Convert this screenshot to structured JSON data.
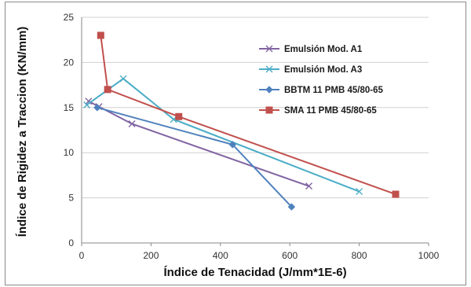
{
  "chart_data": {
    "type": "line",
    "xlabel": "Índice de Tenacidad (J/mm*1E-6)",
    "ylabel": "Índice de Rigidez a Traccion (KN/mm)",
    "xlim": [
      0,
      1000
    ],
    "ylim": [
      0,
      25
    ],
    "xticks": [
      0,
      200,
      400,
      600,
      800,
      1000
    ],
    "yticks": [
      0,
      5,
      10,
      15,
      20,
      25
    ],
    "grid": "horizontal",
    "legend_position": "right",
    "series": [
      {
        "name": "Emulsión Mod. A1",
        "color": "#8064A2",
        "marker": "x",
        "points": [
          [
            20,
            15.7
          ],
          [
            50,
            15.1
          ],
          [
            145,
            13.2
          ],
          [
            655,
            6.3
          ]
        ]
      },
      {
        "name": "Emulsión Mod. A3",
        "color": "#4BACC6",
        "marker": "x",
        "points": [
          [
            15,
            15.3
          ],
          [
            120,
            18.2
          ],
          [
            265,
            13.7
          ],
          [
            800,
            5.7
          ]
        ]
      },
      {
        "name": "BBTM 11 PMB 45/80-65",
        "color": "#4F81BD",
        "marker": "diamond",
        "points": [
          [
            45,
            15.0
          ],
          [
            435,
            10.9
          ],
          [
            605,
            4.0
          ]
        ]
      },
      {
        "name": "SMA 11 PMB 45/80-65",
        "color": "#C0504D",
        "marker": "square",
        "points": [
          [
            55,
            23.0
          ],
          [
            75,
            17.0
          ],
          [
            280,
            14.0
          ],
          [
            905,
            5.4
          ]
        ]
      }
    ]
  }
}
